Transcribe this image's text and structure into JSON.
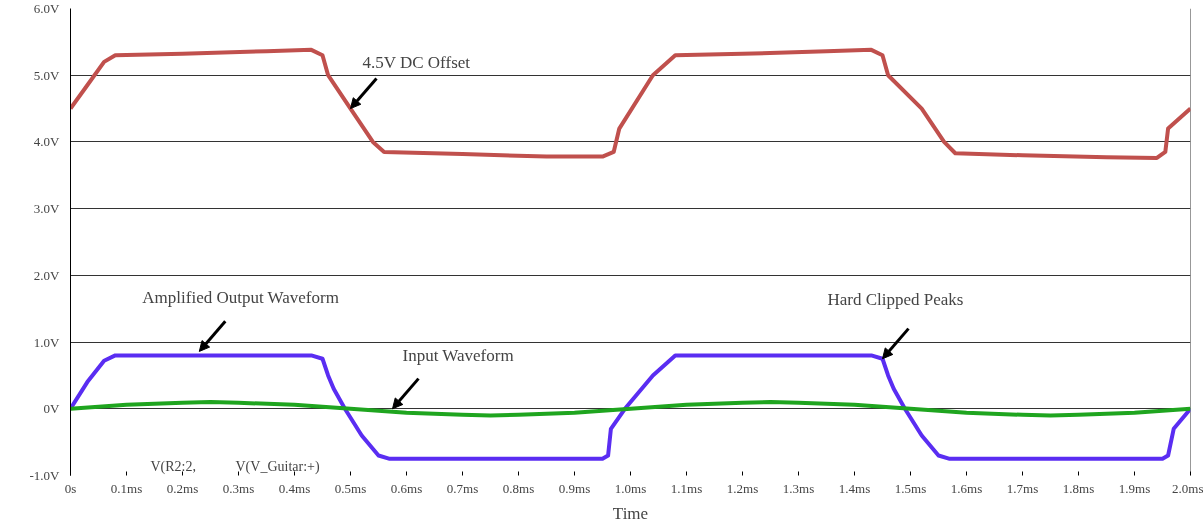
{
  "chart_data": {
    "type": "line",
    "xlabel": "Time",
    "xlim": [
      0,
      2.0
    ],
    "ylim": [
      -1.0,
      6.0
    ],
    "xticks": [
      {
        "value": 0,
        "label": "0s"
      },
      {
        "value": 0.1,
        "label": "0.1ms"
      },
      {
        "value": 0.2,
        "label": "0.2ms"
      },
      {
        "value": 0.3,
        "label": "0.3ms"
      },
      {
        "value": 0.4,
        "label": "0.4ms"
      },
      {
        "value": 0.5,
        "label": "0.5ms"
      },
      {
        "value": 0.6,
        "label": "0.6ms"
      },
      {
        "value": 0.7,
        "label": "0.7ms"
      },
      {
        "value": 0.8,
        "label": "0.8ms"
      },
      {
        "value": 0.9,
        "label": "0.9ms"
      },
      {
        "value": 1.0,
        "label": "1.0ms"
      },
      {
        "value": 1.1,
        "label": "1.1ms"
      },
      {
        "value": 1.2,
        "label": "1.2ms"
      },
      {
        "value": 1.3,
        "label": "1.3ms"
      },
      {
        "value": 1.4,
        "label": "1.4ms"
      },
      {
        "value": 1.5,
        "label": "1.5ms"
      },
      {
        "value": 1.6,
        "label": "1.6ms"
      },
      {
        "value": 1.7,
        "label": "1.7ms"
      },
      {
        "value": 1.8,
        "label": "1.8ms"
      },
      {
        "value": 1.9,
        "label": "1.9ms"
      },
      {
        "value": 2.0,
        "label": "2.0ms"
      }
    ],
    "yticks": [
      {
        "value": -1.0,
        "label": "-1.0V"
      },
      {
        "value": 0,
        "label": "0V"
      },
      {
        "value": 1.0,
        "label": "1.0V"
      },
      {
        "value": 2.0,
        "label": "2.0V"
      },
      {
        "value": 3.0,
        "label": "3.0V"
      },
      {
        "value": 4.0,
        "label": "4.0V"
      },
      {
        "value": 5.0,
        "label": "5.0V"
      },
      {
        "value": 6.0,
        "label": "6.0V"
      }
    ],
    "grid": "y",
    "marker": "none",
    "line_style": "solid",
    "series": [
      {
        "color": "#c0504d",
        "x": [
          0,
          0.03,
          0.06,
          0.08,
          0.2,
          0.35,
          0.43,
          0.45,
          0.46,
          0.5,
          0.54,
          0.56,
          0.7,
          0.85,
          0.95,
          0.97,
          0.98,
          1.04,
          1.08,
          1.2,
          1.35,
          1.43,
          1.45,
          1.46,
          1.52,
          1.56,
          1.58,
          1.7,
          1.85,
          1.94,
          1.955,
          1.96,
          2.0
        ],
        "values": [
          4.5,
          4.85,
          5.2,
          5.3,
          5.32,
          5.36,
          5.38,
          5.3,
          5.0,
          4.5,
          4.0,
          3.85,
          3.82,
          3.78,
          3.78,
          3.85,
          4.2,
          5.0,
          5.3,
          5.32,
          5.36,
          5.38,
          5.3,
          5.0,
          4.5,
          4.0,
          3.83,
          3.8,
          3.77,
          3.76,
          3.85,
          4.2,
          4.5
        ]
      },
      {
        "color": "#5a2df2",
        "x": [
          0,
          0.03,
          0.06,
          0.08,
          0.2,
          0.35,
          0.43,
          0.45,
          0.46,
          0.47,
          0.49,
          0.52,
          0.55,
          0.57,
          0.7,
          0.85,
          0.95,
          0.96,
          0.965,
          0.99,
          1.04,
          1.08,
          1.2,
          1.35,
          1.43,
          1.45,
          1.46,
          1.47,
          1.49,
          1.52,
          1.55,
          1.57,
          1.7,
          1.85,
          1.95,
          1.96,
          1.97,
          2.0
        ],
        "values": [
          0,
          0.4,
          0.72,
          0.8,
          0.8,
          0.8,
          0.8,
          0.75,
          0.5,
          0.3,
          0.0,
          -0.4,
          -0.7,
          -0.75,
          -0.75,
          -0.75,
          -0.75,
          -0.7,
          -0.3,
          0.0,
          0.5,
          0.8,
          0.8,
          0.8,
          0.8,
          0.75,
          0.5,
          0.3,
          0.0,
          -0.4,
          -0.7,
          -0.75,
          -0.75,
          -0.75,
          -0.75,
          -0.7,
          -0.3,
          0.0
        ]
      },
      {
        "color": "#1fa51f",
        "x": [
          0,
          0.1,
          0.2,
          0.25,
          0.3,
          0.4,
          0.5,
          0.6,
          0.7,
          0.75,
          0.8,
          0.9,
          1.0,
          1.1,
          1.2,
          1.25,
          1.3,
          1.4,
          1.5,
          1.6,
          1.7,
          1.75,
          1.8,
          1.9,
          2.0
        ],
        "values": [
          0,
          0.06,
          0.09,
          0.1,
          0.09,
          0.06,
          0,
          -0.06,
          -0.09,
          -0.1,
          -0.09,
          -0.06,
          0,
          0.06,
          0.09,
          0.1,
          0.09,
          0.06,
          0,
          -0.06,
          -0.09,
          -0.1,
          -0.09,
          -0.06,
          0
        ]
      }
    ],
    "annotations": [
      {
        "text": "4.5V DC Offset",
        "x": 0.5,
        "y": 4.5
      },
      {
        "text": "Amplified Output Waveform",
        "x": 0.23,
        "y": 0.86
      },
      {
        "text": "Input Waveform",
        "x": 0.575,
        "y": 0.0
      },
      {
        "text": "Hard Clipped Peaks",
        "x": 1.45,
        "y": 0.75
      },
      "V(R2:2,",
      "V(V_Guitar:+)"
    ]
  }
}
